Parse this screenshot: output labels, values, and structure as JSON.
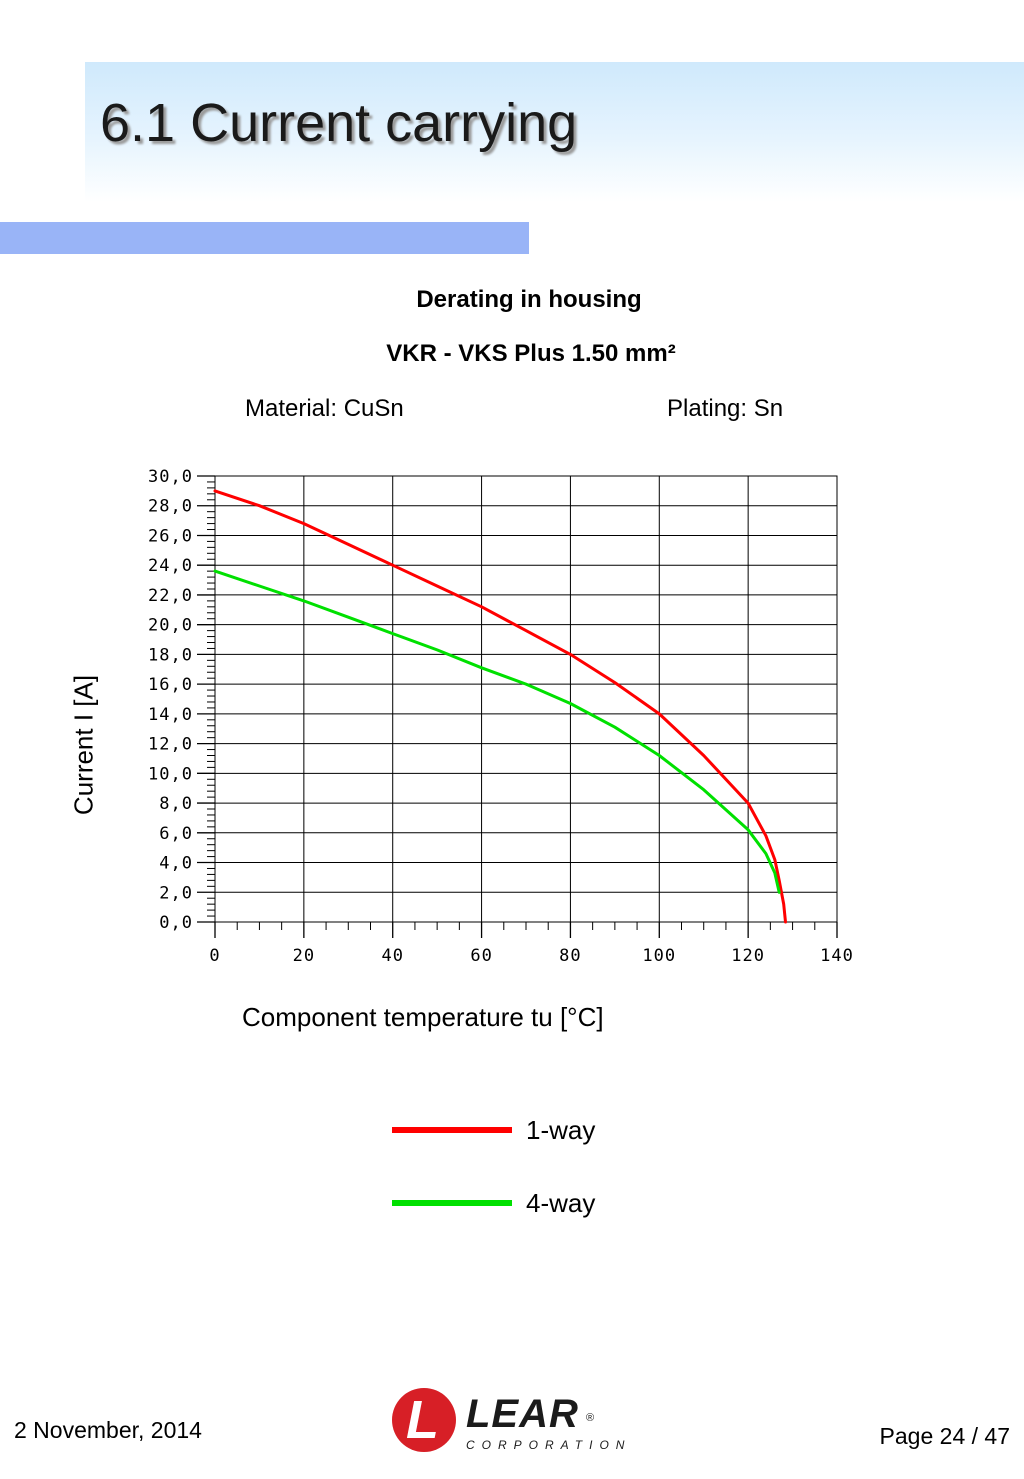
{
  "page": {
    "title": "6.1 Current carrying",
    "date": "2 November, 2014",
    "page_number": "Page 24 / 47"
  },
  "logo": {
    "mark": "L",
    "word": "LEAR",
    "reg": "®",
    "sub": "CORPORATION"
  },
  "colors": {
    "header_band": "#cfe9fc",
    "accent_bar": "#99b4f7",
    "series_1": "#ff0000",
    "series_2": "#00e000"
  },
  "chart_data": {
    "type": "line",
    "title": "Derating in housing",
    "subtitle": "VKR - VKS  Plus 1.50 mm²",
    "material": "Material: CuSn",
    "plating": "Plating: Sn",
    "xlabel": "Component temperature tu [°C]",
    "ylabel": "Current I [A]",
    "xlim": [
      0,
      140
    ],
    "ylim": [
      0,
      30
    ],
    "xticks": [
      "0",
      "20",
      "40",
      "60",
      "80",
      "100",
      "120",
      "140"
    ],
    "yticks": [
      "0,0",
      "2,0",
      "4,0",
      "6,0",
      "8,0",
      "10,0",
      "12,0",
      "14,0",
      "16,0",
      "18,0",
      "20,0",
      "22,0",
      "24,0",
      "26,0",
      "28,0",
      "30,0"
    ],
    "grid": true,
    "legend_position": "bottom",
    "series": [
      {
        "name": "1-way",
        "color": "#ff0000",
        "x": [
          0,
          10,
          20,
          30,
          40,
          50,
          60,
          70,
          80,
          90,
          100,
          110,
          120,
          124,
          126,
          127,
          128,
          128.4
        ],
        "y": [
          29.0,
          28.0,
          26.8,
          25.4,
          24.0,
          22.6,
          21.2,
          19.6,
          18.0,
          16.1,
          14.0,
          11.2,
          8.0,
          5.8,
          4.2,
          2.8,
          1.2,
          0.0
        ]
      },
      {
        "name": "4-way",
        "color": "#00e000",
        "x": [
          0,
          10,
          20,
          30,
          40,
          50,
          60,
          70,
          80,
          90,
          100,
          110,
          120,
          124,
          126,
          127
        ],
        "y": [
          23.6,
          22.6,
          21.6,
          20.5,
          19.4,
          18.3,
          17.1,
          16.0,
          14.7,
          13.1,
          11.2,
          8.9,
          6.2,
          4.6,
          3.3,
          2.0
        ]
      }
    ]
  }
}
